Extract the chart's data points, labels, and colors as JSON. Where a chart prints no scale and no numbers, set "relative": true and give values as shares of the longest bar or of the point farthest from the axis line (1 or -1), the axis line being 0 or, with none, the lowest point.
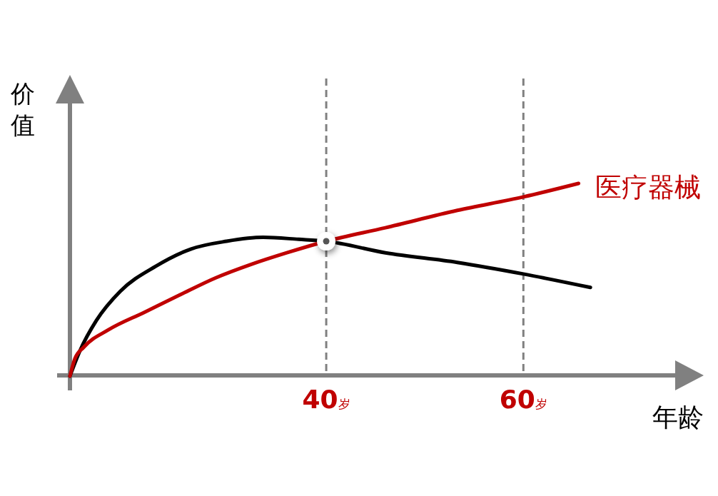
{
  "chart_data": {
    "type": "line",
    "xlabel": "年龄",
    "ylabel": "价值",
    "relative": true,
    "xlim": [
      14,
      75.4
    ],
    "xticks": [
      {
        "value": 40,
        "label": "40岁"
      },
      {
        "value": 60,
        "label": "60岁"
      }
    ],
    "ref_lines": [
      {
        "axis": "x",
        "value": 40,
        "color": "#808080",
        "line_style": "dashed"
      },
      {
        "axis": "x",
        "value": 60,
        "color": "#808080",
        "line_style": "dashed"
      }
    ],
    "series": [
      {
        "color": "#000000",
        "x": [
          14.0,
          15.0,
          16.7,
          19.1,
          22.7,
          26.3,
          29.9,
          33.6,
          37.2,
          40.0,
          46.0,
          53.3,
          60.0,
          66.8
        ],
        "values": [
          0,
          0.13,
          0.29,
          0.44,
          0.57,
          0.66,
          0.7,
          0.72,
          0.71,
          0.7,
          0.64,
          0.59,
          0.53,
          0.46
        ]
      },
      {
        "name": "医疗器械",
        "color": "#c00000",
        "x": [
          14.0,
          14.5,
          15.4,
          17.9,
          21.5,
          25.1,
          28.8,
          32.4,
          36.0,
          40.0,
          46.0,
          53.3,
          60.0,
          65.6
        ],
        "values": [
          0,
          0.09,
          0.15,
          0.24,
          0.33,
          0.42,
          0.51,
          0.58,
          0.64,
          0.7,
          0.77,
          0.86,
          0.93,
          1.0
        ]
      }
    ]
  }
}
